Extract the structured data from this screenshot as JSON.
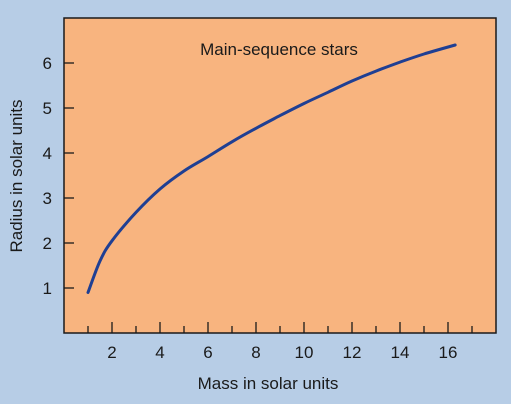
{
  "chart_data": {
    "type": "line",
    "title": "Main-sequence stars",
    "xlabel": "Mass in solar units",
    "ylabel": "Radius in solar units",
    "xlim": [
      0,
      18
    ],
    "ylim": [
      0,
      7
    ],
    "x_ticks": [
      2,
      4,
      6,
      8,
      10,
      12,
      14,
      16
    ],
    "y_ticks": [
      1,
      2,
      3,
      4,
      5,
      6
    ],
    "grid": false,
    "series": [
      {
        "x": [
          1,
          1.5,
          2,
          3,
          4,
          5,
          6,
          7,
          8,
          9,
          10,
          11,
          12,
          13,
          14,
          15,
          16.3
        ],
        "values": [
          0.9,
          1.6,
          2.05,
          2.68,
          3.2,
          3.6,
          3.92,
          4.25,
          4.55,
          4.83,
          5.1,
          5.35,
          5.6,
          5.82,
          6.02,
          6.2,
          6.4
        ]
      }
    ],
    "colors": {
      "plot_background": "#f8b47f",
      "page_background": "#b7cde6",
      "line": "#1f3f93",
      "axis": "#1a1a1a"
    }
  }
}
